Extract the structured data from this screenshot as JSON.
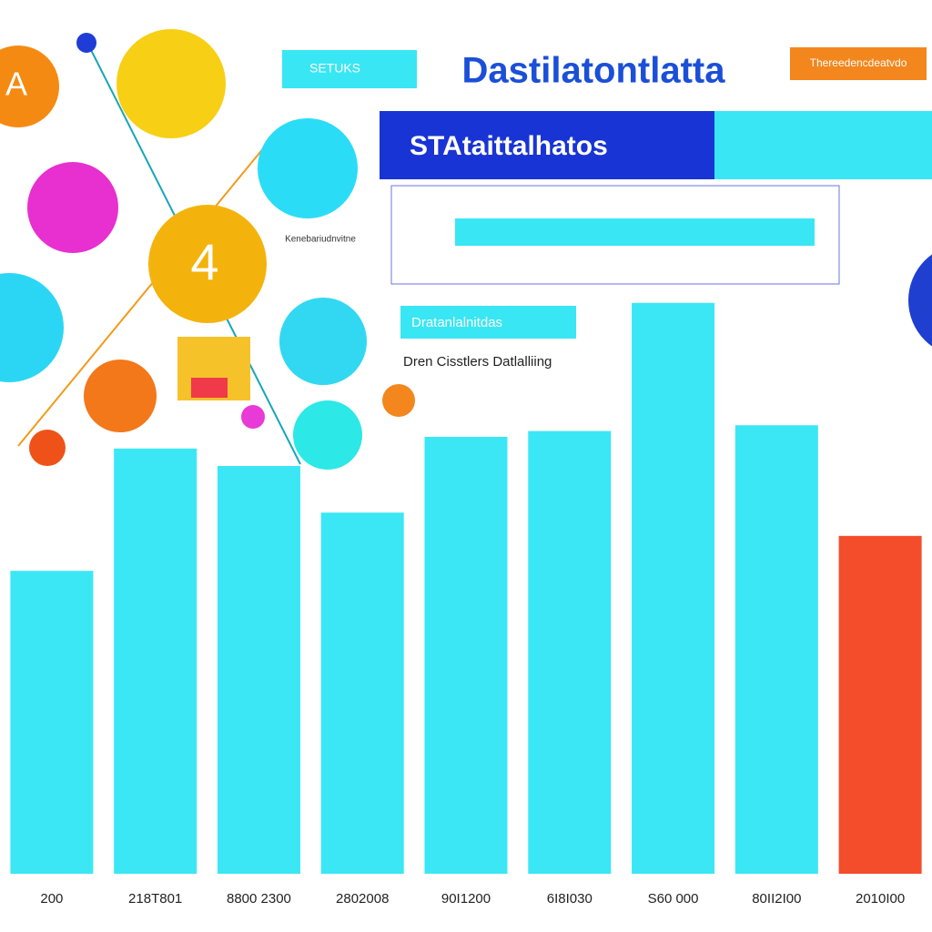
{
  "chart_data": {
    "type": "bar",
    "title": "Dastilatontlatta",
    "subtitle": "STAtaittalhatos",
    "badge": "SETUKS",
    "top_note": "Thereedencdeatvdo",
    "annotations": [
      "Kenebariudnvitne",
      "Dratanlalnitdas",
      "Dren Cisstlers Datlalliing"
    ],
    "icons": [
      "A",
      "4"
    ],
    "categories": [
      "200",
      "218T801",
      "8800 2300",
      "2802008",
      "90I1200",
      "6I8I030",
      "S60 000",
      "80II2I00",
      "2010I00"
    ],
    "values": [
      52,
      73,
      70,
      62,
      75,
      76,
      98,
      77,
      58
    ],
    "colors": [
      "#27e4f4",
      "#27e4f4",
      "#27e4f4",
      "#27e4f4",
      "#27e4f4",
      "#27e4f4",
      "#27e4f4",
      "#27e4f4",
      "#f23a14"
    ],
    "ylim": [
      0,
      100
    ]
  }
}
